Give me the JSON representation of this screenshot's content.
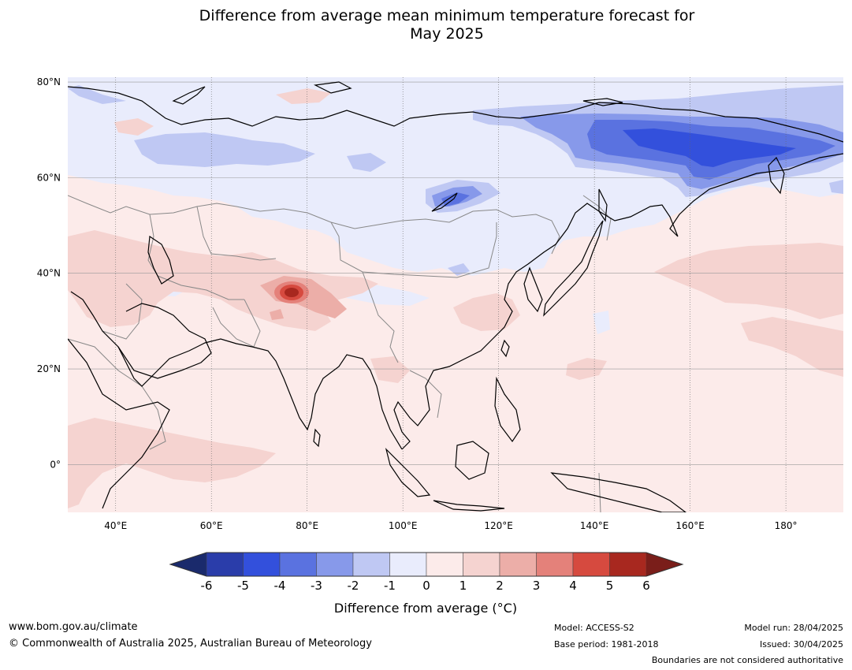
{
  "title_line1": "Difference from average mean minimum temperature forecast for",
  "title_line2": "May 2025",
  "map": {
    "lat_labels": [
      "80°N",
      "60°N",
      "40°N",
      "20°N",
      "0°"
    ],
    "lon_labels": [
      "40°E",
      "60°E",
      "80°E",
      "100°E",
      "120°E",
      "140°E",
      "160°E",
      "180°"
    ],
    "lat_values": [
      80,
      60,
      40,
      20,
      0
    ],
    "lon_values": [
      40,
      60,
      80,
      100,
      120,
      140,
      160,
      180
    ],
    "extent": {
      "lon_min": 30,
      "lon_max": 192,
      "lat_min": -10,
      "lat_max": 81
    },
    "ocean_color": "#fcebea",
    "land_line_color": "#000000",
    "border_line_color": "#888888"
  },
  "colorbar": {
    "title": "Difference from average (°C)",
    "ticks": [
      "-6",
      "-5",
      "-4",
      "-3",
      "-2",
      "-1",
      "0",
      "1",
      "2",
      "3",
      "4",
      "5",
      "6"
    ],
    "under_color": "#1a2a6c",
    "over_color": "#7a1e1a",
    "colors": [
      "#2a3daa",
      "#3350dc",
      "#5a72e0",
      "#8799ea",
      "#bfc8f3",
      "#e9ecfc",
      "#fcebea",
      "#f5d3d0",
      "#ecaea8",
      "#e4817a",
      "#d64a3f",
      "#a8281f"
    ]
  },
  "footer": {
    "website": "www.bom.gov.au/climate",
    "copyright": "© Commonwealth of Australia 2025, Australian Bureau of Meteorology",
    "model": "Model: ACCESS-S2",
    "base_period": "Base period: 1981-2018",
    "model_run": "Model run: 28/04/2025",
    "issued": "Issued: 30/04/2025",
    "boundaries_note": "Boundaries are not considered authoritative"
  }
}
